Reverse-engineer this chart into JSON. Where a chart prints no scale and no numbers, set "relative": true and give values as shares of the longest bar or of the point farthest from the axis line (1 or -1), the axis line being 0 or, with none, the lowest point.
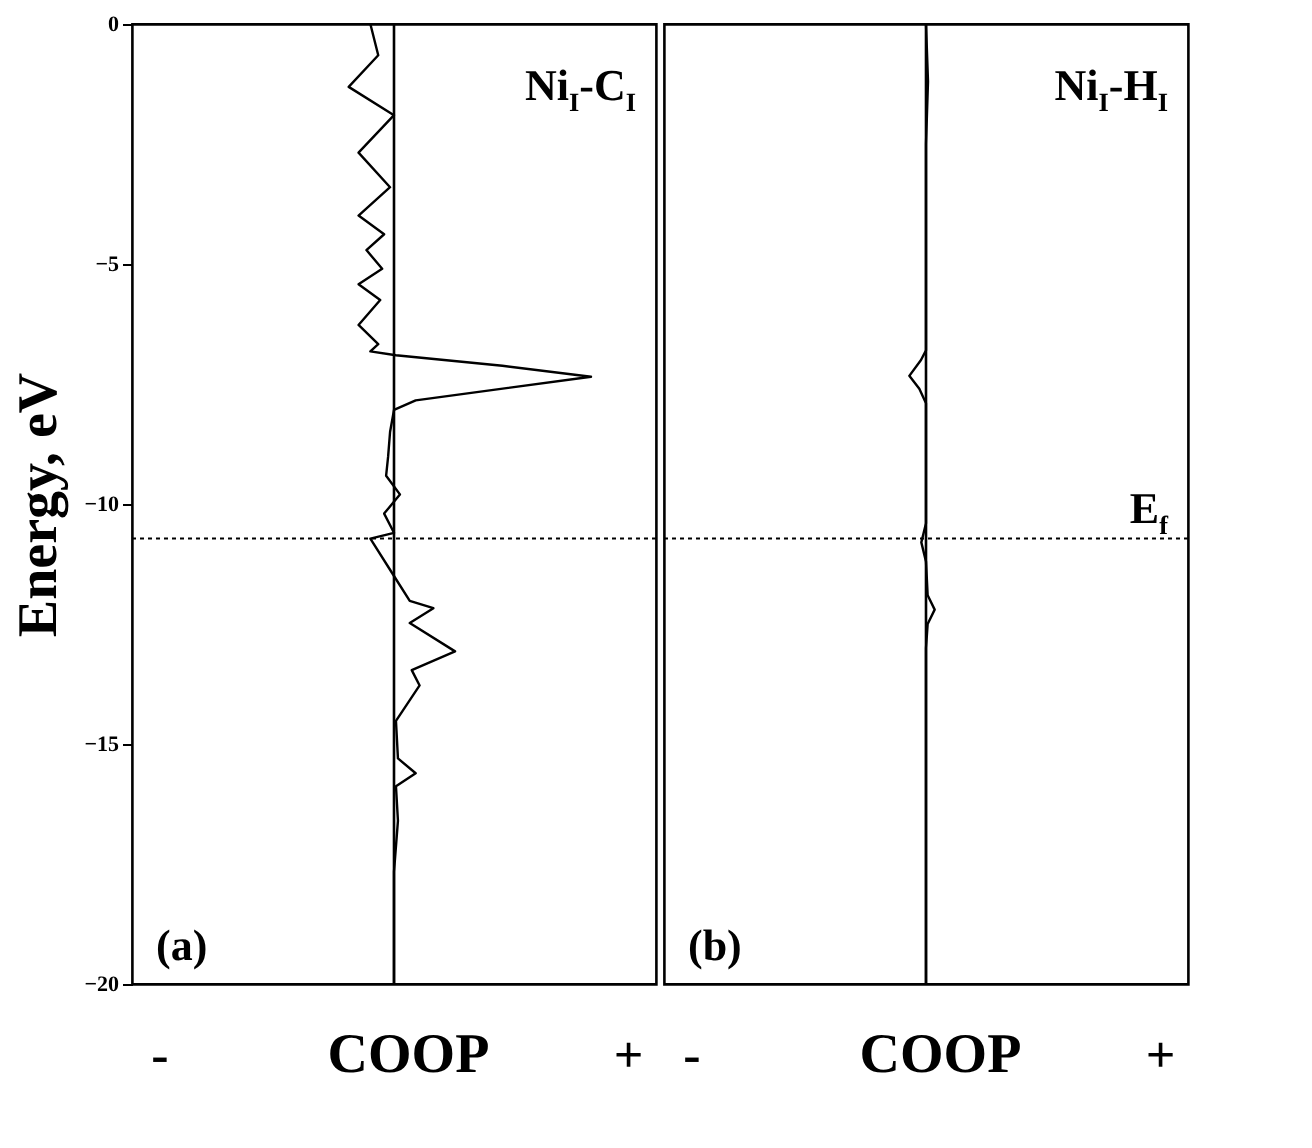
{
  "chart_data": [
    {
      "type": "line",
      "orientation": "horizontal",
      "relative": true,
      "ylabel": "Energy, eV",
      "xlabel": "COOP",
      "tick_labels": "y",
      "ylim": [
        -20,
        0
      ],
      "yticks": [
        -20,
        -15,
        -10,
        -5,
        0
      ],
      "annotations": [
        "Ni$_{I}$-C$_{I}$",
        "(a)",
        "-",
        "+"
      ],
      "ref_lines": [
        {
          "axis": "y",
          "value": -10.72,
          "line_style": "dotted"
        }
      ],
      "series": [
        {
          "color": "#000000",
          "x": [
            0,
            -0.65,
            -1.31,
            -1.9,
            -2.68,
            -3.4,
            -3.99,
            -4.38,
            -4.71,
            -5.1,
            -5.42,
            -5.75,
            -6.27,
            -6.67,
            -6.82,
            -6.9,
            -7.12,
            -7.35,
            -7.58,
            -7.84,
            -8.04,
            -8.5,
            -9.02,
            -9.41,
            -9.8,
            -10.2,
            -10.6,
            -10.72,
            -11.5,
            -12.02,
            -12.17,
            -12.48,
            -13.07,
            -13.46,
            -13.78,
            -14.52,
            -15.3,
            -15.61,
            -15.88,
            -16.6,
            -17.66,
            -20
          ],
          "values": [
            -0.12,
            -0.08,
            -0.23,
            0,
            -0.18,
            -0.02,
            -0.18,
            -0.05,
            -0.14,
            -0.06,
            -0.18,
            -0.07,
            -0.18,
            -0.08,
            -0.12,
            0.01,
            0.55,
            1.0,
            0.58,
            0.11,
            0,
            -0.02,
            -0.03,
            -0.04,
            0.03,
            -0.05,
            0,
            -0.12,
            0,
            0.08,
            0.2,
            0.08,
            0.31,
            0.09,
            0.13,
            0.01,
            0.02,
            0.11,
            0.01,
            0.02,
            0,
            0
          ]
        }
      ]
    },
    {
      "type": "line",
      "orientation": "horizontal",
      "relative": true,
      "xlabel": "COOP",
      "tick_labels": false,
      "ylim": [
        -20,
        0
      ],
      "yticks": [
        -20,
        -15,
        -10,
        -5,
        0
      ],
      "annotations": [
        "Ni$_{I}$-H$_{I}$",
        "(b)",
        "-",
        "+"
      ],
      "ref_lines": [
        {
          "axis": "y",
          "value": -10.72,
          "label": "E$_{f}$",
          "line_style": "dotted"
        }
      ],
      "series": [
        {
          "color": "#000000",
          "x": [
            0,
            -1.2,
            -2.5,
            -6.8,
            -7.0,
            -7.33,
            -7.6,
            -7.9,
            -10.4,
            -10.8,
            -11.2,
            -11.9,
            -12.2,
            -12.5,
            -13,
            -20
          ],
          "values": [
            0,
            0.12,
            0,
            0,
            -0.3,
            -1.0,
            -0.4,
            0,
            0,
            -0.28,
            0,
            0.1,
            0.52,
            0.1,
            0,
            0
          ]
        }
      ]
    }
  ]
}
